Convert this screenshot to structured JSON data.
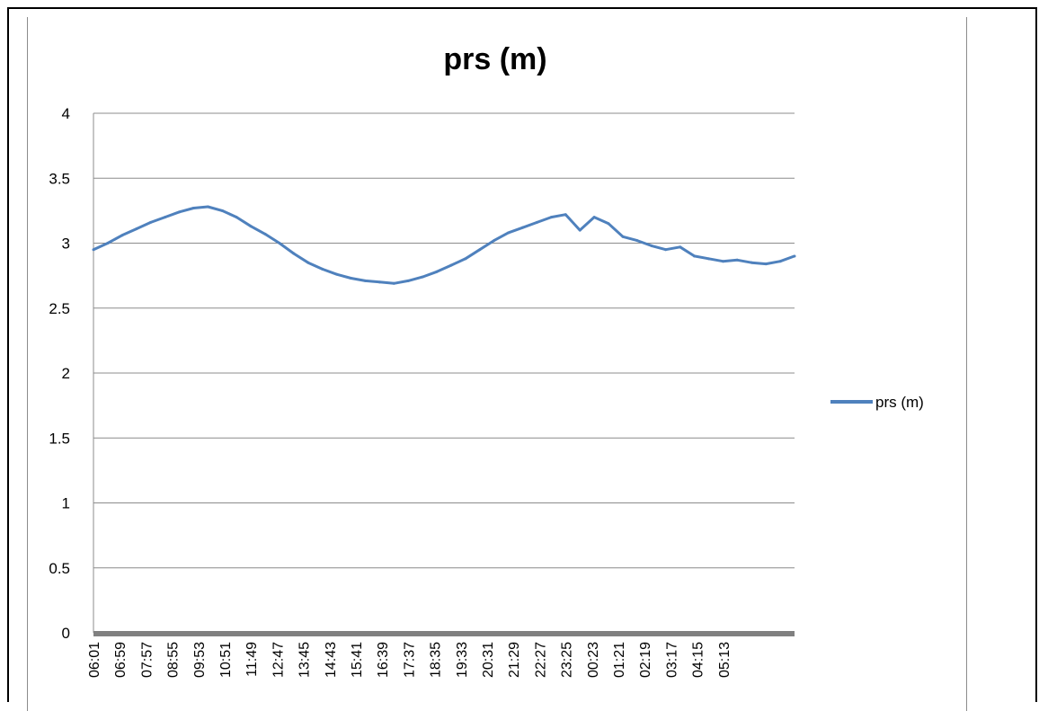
{
  "chart_data": {
    "type": "line",
    "title": "prs (m)",
    "xlabel": "",
    "ylabel": "",
    "ylim": [
      0,
      4
    ],
    "yticks": [
      "0",
      "0.5",
      "1",
      "1.5",
      "2",
      "2.5",
      "3",
      "3.5",
      "4"
    ],
    "categories": [
      "06:01",
      "06:59",
      "07:57",
      "08:55",
      "09:53",
      "10:51",
      "11:49",
      "12:47",
      "13:45",
      "14:43",
      "15:41",
      "16:39",
      "17:37",
      "18:35",
      "19:33",
      "20:31",
      "21:29",
      "22:27",
      "23:25",
      "00:23",
      "01:21",
      "02:19",
      "03:17",
      "04:15",
      "05:13"
    ],
    "grid": "horizontal",
    "legend_position": "right",
    "series": [
      {
        "name": "prs (m)",
        "color": "#4f81bd",
        "x": [
          "06:01",
          "06:30",
          "06:59",
          "07:28",
          "07:57",
          "08:26",
          "08:55",
          "09:24",
          "09:53",
          "10:22",
          "10:51",
          "11:20",
          "11:49",
          "12:18",
          "12:47",
          "13:16",
          "13:45",
          "14:14",
          "14:43",
          "15:12",
          "15:41",
          "16:10",
          "16:39",
          "17:08",
          "17:37",
          "18:06",
          "18:35",
          "19:04",
          "19:33",
          "20:02",
          "20:31",
          "21:00",
          "21:29",
          "21:58",
          "22:27",
          "22:56",
          "23:25",
          "23:54",
          "00:23",
          "00:52",
          "01:21",
          "01:50",
          "02:19",
          "02:48",
          "03:17",
          "03:46",
          "04:15",
          "04:44",
          "05:13",
          "05:42"
        ],
        "values": [
          2.95,
          3.0,
          3.06,
          3.11,
          3.16,
          3.2,
          3.24,
          3.27,
          3.28,
          3.25,
          3.2,
          3.13,
          3.07,
          3.0,
          2.92,
          2.85,
          2.8,
          2.76,
          2.73,
          2.71,
          2.7,
          2.69,
          2.71,
          2.74,
          2.78,
          2.83,
          2.88,
          2.95,
          3.02,
          3.08,
          3.12,
          3.16,
          3.2,
          3.22,
          3.1,
          3.2,
          3.15,
          3.05,
          3.02,
          2.98,
          2.95,
          2.97,
          2.9,
          2.88,
          2.86,
          2.87,
          2.85,
          2.84,
          2.86,
          2.9
        ]
      }
    ]
  }
}
